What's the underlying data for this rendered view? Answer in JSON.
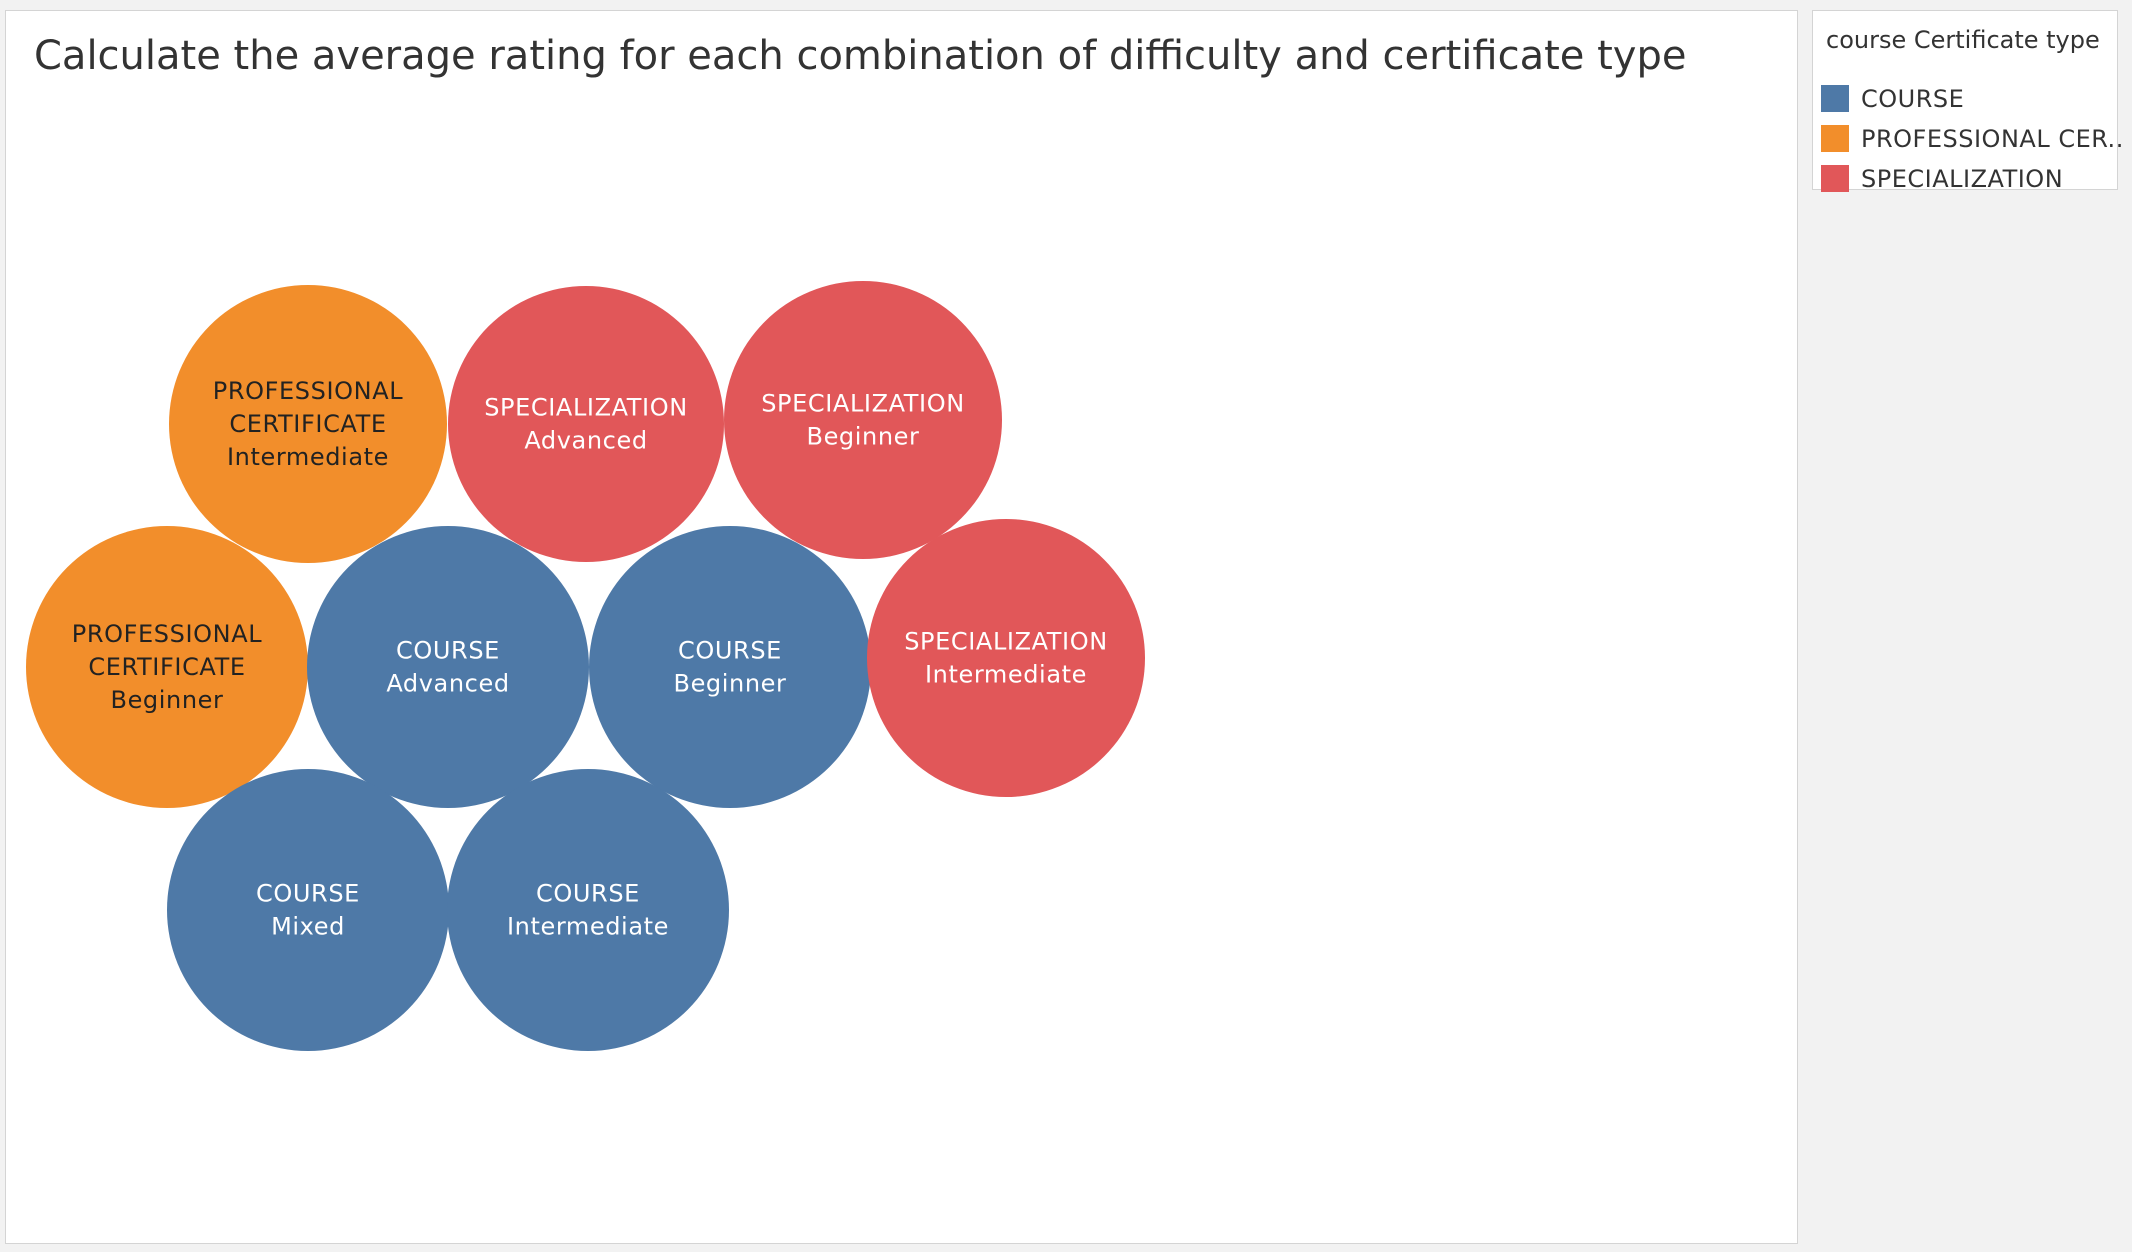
{
  "chart_data": {
    "type": "packed-bubble",
    "title": "Calculate the average rating for each combination of difficulty and certificate type",
    "legend": {
      "title": "course Certificate type",
      "placement": "top-right",
      "entries": [
        {
          "label": "COURSE",
          "color": "#4e79a7"
        },
        {
          "label": "PROFESSIONAL CER..",
          "color": "#f28e2b"
        },
        {
          "label": "SPECIALIZATION",
          "color": "#e15759"
        }
      ]
    },
    "bubbles": [
      {
        "certificate_type": "PROFESSIONAL CERTIFICATE",
        "difficulty": "Intermediate",
        "label_lines": [
          "PROFESSIONAL",
          "CERTIFICATE",
          "Intermediate"
        ],
        "color": "#f28e2b",
        "text_color": "#222222"
      },
      {
        "certificate_type": "SPECIALIZATION",
        "difficulty": "Advanced",
        "label_lines": [
          "SPECIALIZATION",
          "Advanced"
        ],
        "color": "#e15759",
        "text_color": "#ffffff"
      },
      {
        "certificate_type": "SPECIALIZATION",
        "difficulty": "Beginner",
        "label_lines": [
          "SPECIALIZATION",
          "Beginner"
        ],
        "color": "#e15759",
        "text_color": "#ffffff"
      },
      {
        "certificate_type": "PROFESSIONAL CERTIFICATE",
        "difficulty": "Beginner",
        "label_lines": [
          "PROFESSIONAL",
          "CERTIFICATE",
          "Beginner"
        ],
        "color": "#f28e2b",
        "text_color": "#222222"
      },
      {
        "certificate_type": "COURSE",
        "difficulty": "Advanced",
        "label_lines": [
          "COURSE",
          "Advanced"
        ],
        "color": "#4e79a7",
        "text_color": "#ffffff"
      },
      {
        "certificate_type": "COURSE",
        "difficulty": "Beginner",
        "label_lines": [
          "COURSE",
          "Beginner"
        ],
        "color": "#4e79a7",
        "text_color": "#ffffff"
      },
      {
        "certificate_type": "SPECIALIZATION",
        "difficulty": "Intermediate",
        "label_lines": [
          "SPECIALIZATION",
          "Intermediate"
        ],
        "color": "#e15759",
        "text_color": "#ffffff"
      },
      {
        "certificate_type": "COURSE",
        "difficulty": "Mixed",
        "label_lines": [
          "COURSE",
          "Mixed"
        ],
        "color": "#4e79a7",
        "text_color": "#ffffff"
      },
      {
        "certificate_type": "COURSE",
        "difficulty": "Intermediate",
        "label_lines": [
          "COURSE",
          "Intermediate"
        ],
        "color": "#4e79a7",
        "text_color": "#ffffff"
      }
    ]
  }
}
